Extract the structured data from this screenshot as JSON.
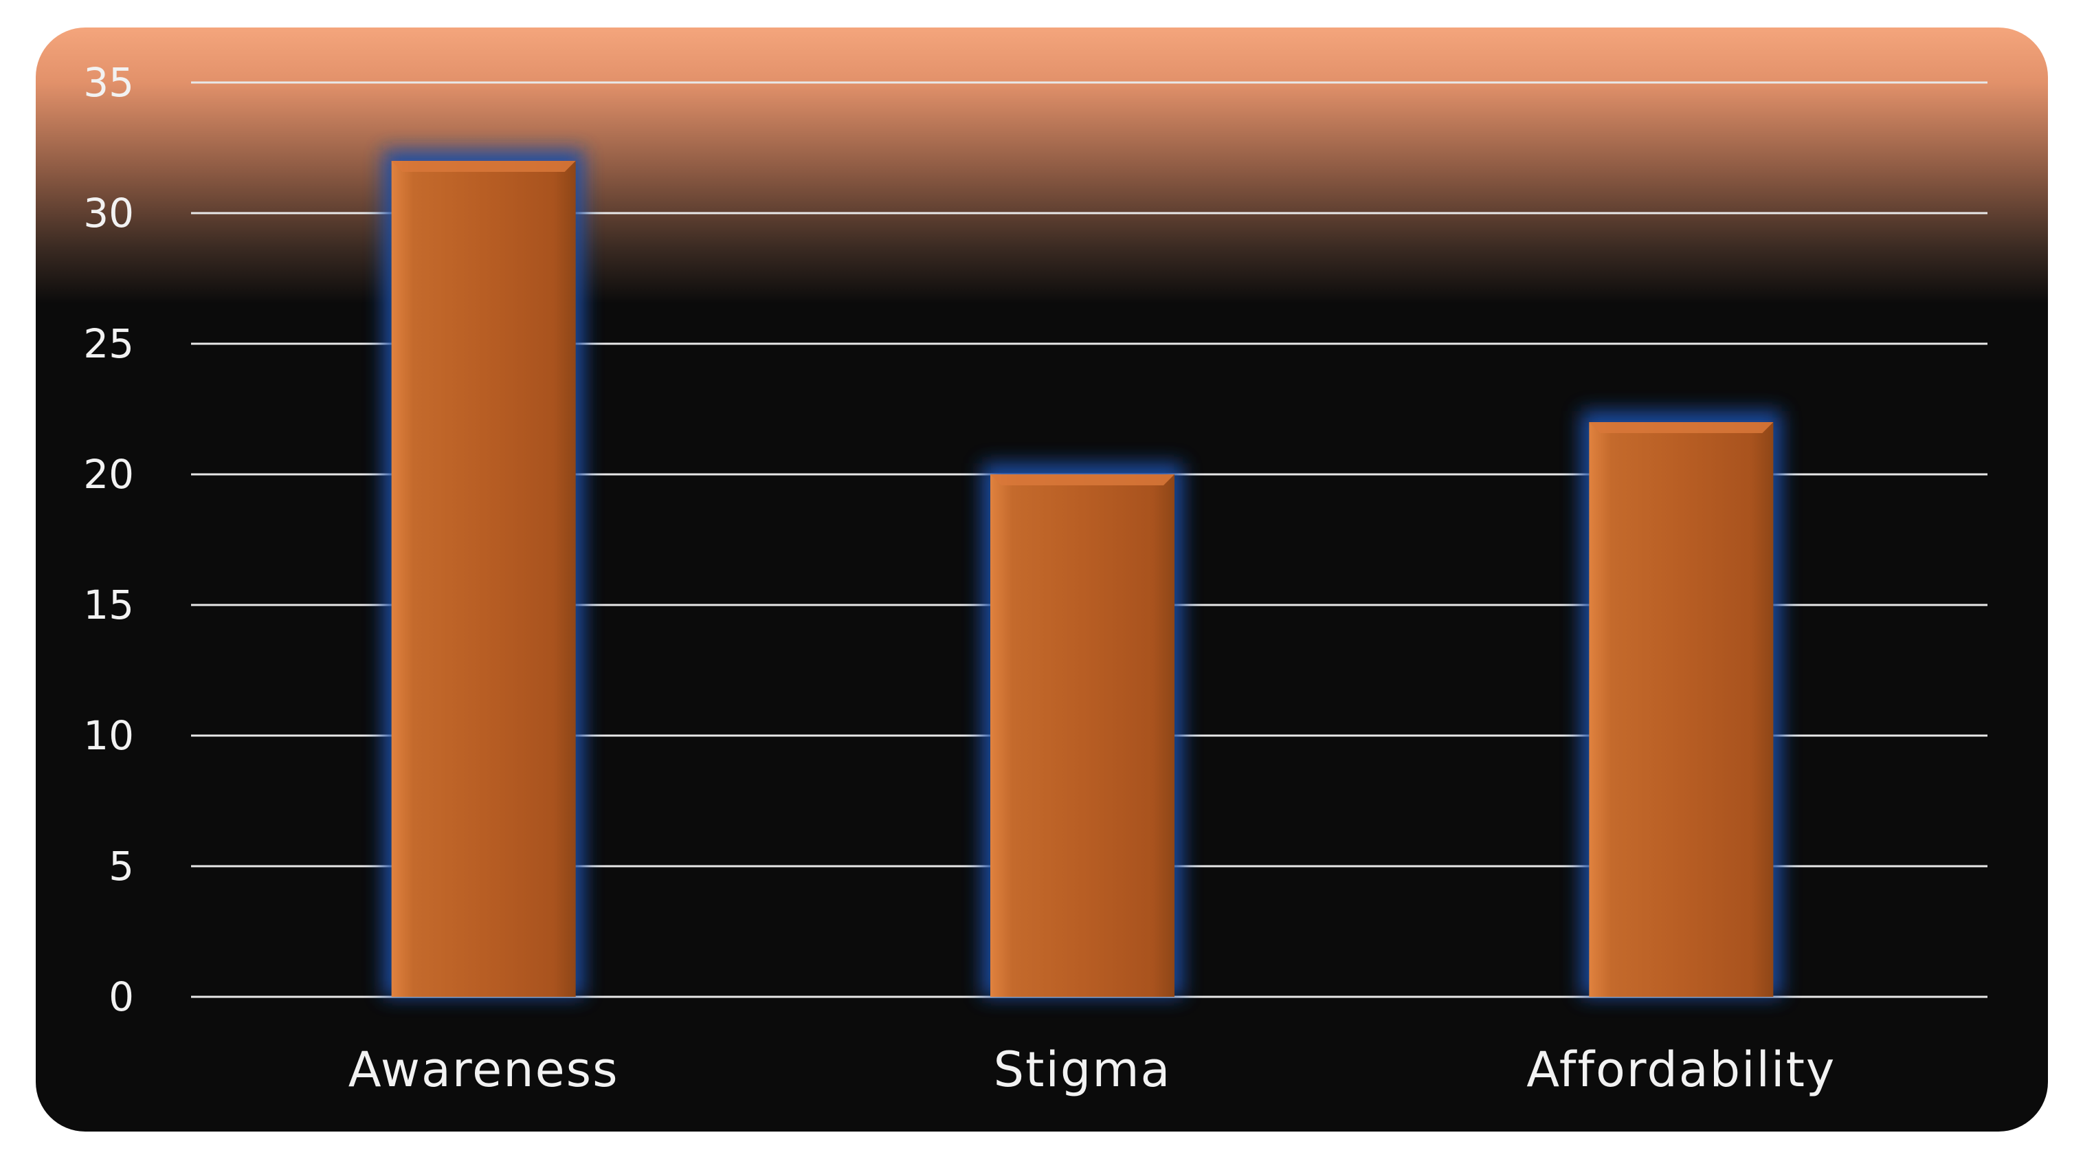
{
  "chart_data": {
    "type": "bar",
    "title": "",
    "xlabel": "",
    "ylabel": "",
    "categories": [
      "Awareness",
      "Stigma",
      "Affordability"
    ],
    "values": [
      32,
      20,
      22
    ],
    "ylim": [
      0,
      35
    ],
    "yticks": [
      "0",
      "5",
      "10",
      "15",
      "20",
      "25",
      "30",
      "35"
    ],
    "grid": true,
    "legend": "none",
    "colors": {
      "bar": "#b85e24",
      "bar_glow": "#1f4fa8",
      "background": "#0b0b0b",
      "background_top": "#f4a57c",
      "gridline": "#e8e8e8",
      "text": "#f2f2f2"
    }
  }
}
